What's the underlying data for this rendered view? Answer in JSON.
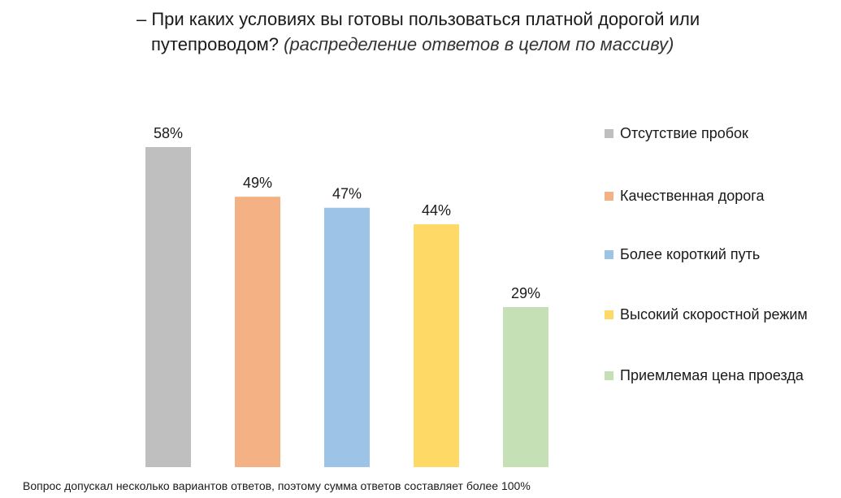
{
  "title_line1": "– При каких условиях вы готовы пользоваться платной дорогой или",
  "title_line2": "путепроводом?",
  "title_sub": "(распределение ответов в целом по массиву)",
  "footnote": "Вопрос допускал несколько вариантов ответов, поэтому сумма ответов составляет более 100%",
  "chart_data": {
    "type": "bar",
    "title": "– При каких условиях вы готовы пользоваться платной дорогой или путепроводом?",
    "subtitle": "(распределение ответов в целом по массиву)",
    "categories": [
      "Отсутствие пробок",
      "Качественная дорога",
      "Более короткий путь",
      "Высокий скоростной режим",
      "Приемлемая цена проезда"
    ],
    "values": [
      58,
      49,
      47,
      44,
      29
    ],
    "value_labels": [
      "58%",
      "49%",
      "47%",
      "44%",
      "29%"
    ],
    "colors": [
      "#bfbfbf",
      "#f4b183",
      "#9dc3e6",
      "#ffd966",
      "#c5e0b4"
    ],
    "ylim": [
      0,
      58
    ],
    "grid": false,
    "legend": "right",
    "axis_ticks": false
  }
}
